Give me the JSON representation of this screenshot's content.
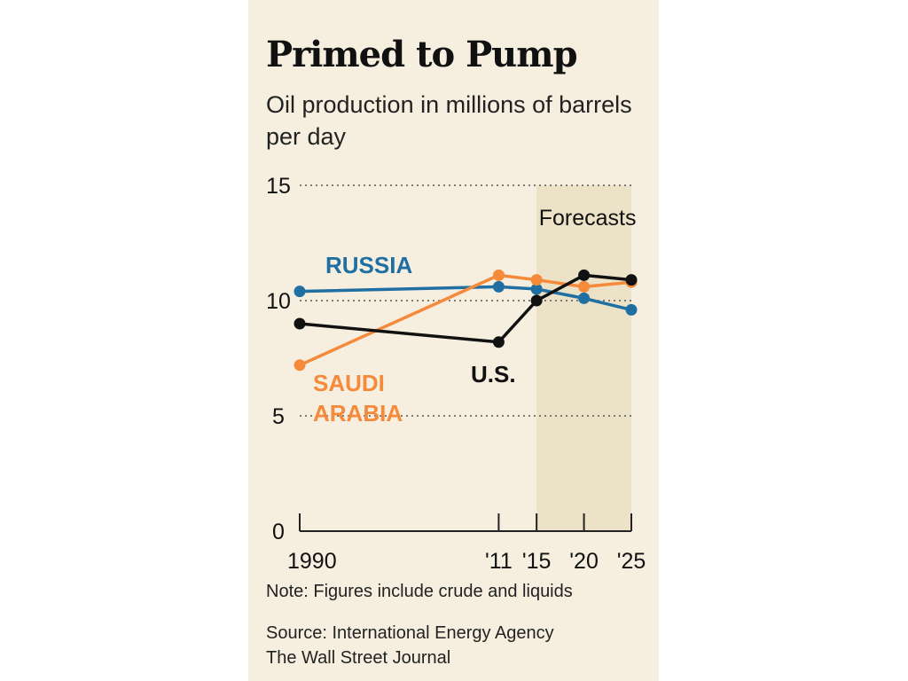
{
  "header": {
    "title": "Primed to Pump",
    "subtitle": "Oil production in millions of barrels per day"
  },
  "chart_data": {
    "type": "line",
    "x_tick_labels": [
      "1990",
      "'11",
      "'15",
      "'20",
      "'25"
    ],
    "x": [
      1990,
      2011,
      2015,
      2020,
      2025
    ],
    "ylim": [
      0,
      15
    ],
    "y_ticks": [
      15,
      10,
      5,
      0
    ],
    "forecast_label": "Forecasts",
    "forecast_range": [
      2015,
      2025
    ],
    "grid": "dotted horizontal at 5, 10, 15",
    "series": [
      {
        "name": "RUSSIA",
        "color": "#1f6fa3",
        "values": [
          10.4,
          10.6,
          10.5,
          10.1,
          9.6
        ]
      },
      {
        "name": "SAUDI ARABIA",
        "name_lines": [
          "SAUDI",
          "ARABIA"
        ],
        "color": "#f58a3b",
        "values": [
          7.2,
          11.1,
          10.9,
          10.6,
          10.8
        ]
      },
      {
        "name": "U.S.",
        "color": "#111111",
        "values": [
          9.0,
          8.2,
          10.0,
          11.1,
          10.9
        ]
      }
    ]
  },
  "footer": {
    "note": "Note: Figures include crude and liquids",
    "source_lines": [
      "Source: International Energy Agency",
      "The Wall Street Journal"
    ]
  }
}
